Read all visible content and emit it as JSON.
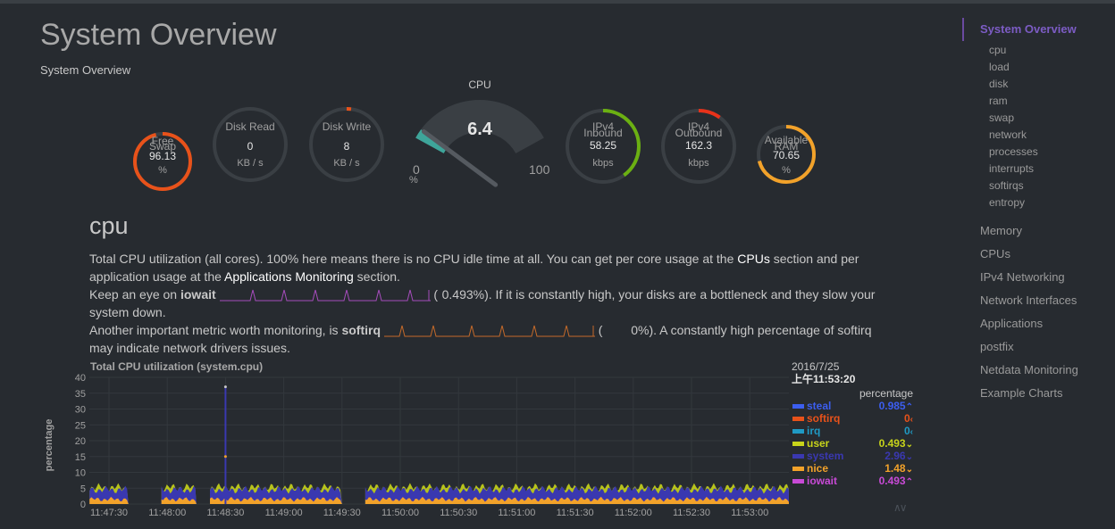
{
  "page": {
    "title": "System Overview",
    "subtitle": "System Overview"
  },
  "gauges": {
    "swap": {
      "label1": "Free",
      "label2": "Swap",
      "value": "96.13",
      "unit": "%",
      "color": "#e8521a",
      "fraction": 0.96
    },
    "diskread": {
      "label1": "Disk Read",
      "value": "0",
      "unit": "KB / s",
      "color": "#e8521a",
      "fraction": 0.0
    },
    "diskwrite": {
      "label1": "Disk Write",
      "value": "8",
      "unit": "KB / s",
      "color": "#e8521a",
      "fraction": 0.02
    },
    "inbound": {
      "label1": "IPv4",
      "label2": "Inbound",
      "value": "58.25",
      "unit": "kbps",
      "color": "#6bb012",
      "fraction": 0.4
    },
    "outbound": {
      "label1": "IPv4",
      "label2": "Outbound",
      "value": "162.3",
      "unit": "kbps",
      "color": "#e8321a",
      "fraction": 0.1
    },
    "ram": {
      "label1": "Available",
      "label2": "RAM",
      "value": "70.65",
      "unit": "%",
      "color": "#f2a22a",
      "fraction": 0.71
    }
  },
  "cpu_gauge": {
    "title": "CPU",
    "value": "6.4",
    "min": "0",
    "max": "100",
    "unit": "%",
    "fraction": 0.064,
    "color": "#3ea59a"
  },
  "section": {
    "title": "cpu",
    "p1_a": "Total CPU utilization (all cores). 100% here means there is no CPU idle time at all. You can get per core usage at the ",
    "p1_link1": "CPUs",
    "p1_b": " section and per application usage at the ",
    "p1_link2": "Applications Monitoring",
    "p1_c": " section.",
    "p2_a": "Keep an eye on ",
    "p2_key": "iowait",
    "p2_open": " (",
    "p2_val": "0.493%",
    "p2_b": "). If it is constantly high, your disks are a bottleneck and they slow your system down.",
    "p3_a": "Another important metric worth monitoring, is ",
    "p3_key": "softirq",
    "p3_open": " (",
    "p3_val": "0%",
    "p3_b": "). A constantly high percentage of softirq may indicate network drivers issues."
  },
  "chart_data": {
    "type": "area",
    "title": "Total CPU utilization (system.cpu)",
    "ylabel": "percentage",
    "xlabel": "",
    "ylim": [
      0,
      40
    ],
    "yticks": [
      "40",
      "35",
      "30",
      "25",
      "20",
      "15",
      "10",
      "5",
      "0"
    ],
    "x": [
      "11:47:30",
      "11:48:00",
      "11:48:30",
      "11:49:00",
      "11:49:30",
      "11:50:00",
      "11:50:30",
      "11:51:00",
      "11:51:30",
      "11:52:00",
      "11:52:30",
      "11:53:00"
    ],
    "series": [
      {
        "name": "steal",
        "value": "0.985",
        "color": "#3c5ef0"
      },
      {
        "name": "softirq",
        "value": "0",
        "color": "#e8521a"
      },
      {
        "name": "irq",
        "value": "0",
        "color": "#1f9ac4"
      },
      {
        "name": "user",
        "value": "0.493",
        "color": "#c8d41a"
      },
      {
        "name": "system",
        "value": "2.96",
        "color": "#3a38b0"
      },
      {
        "name": "nice",
        "value": "1.48",
        "color": "#f2a22a"
      },
      {
        "name": "iowait",
        "value": "0.493",
        "color": "#c84ad6"
      }
    ],
    "stacked_levels": {
      "nice": 1.5,
      "system": 4.5,
      "user": 5.2
    },
    "spike": {
      "time": "11:48:30",
      "value": 37
    },
    "gaps": [
      "11:47:40-11:47:57",
      "11:48:15-11:48:22",
      "11:49:30-11:49:42"
    ]
  },
  "legend": {
    "date": "2016/7/25",
    "time": "上午11:53:20",
    "unit": "percentage",
    "arrows": [
      "^",
      "<",
      "<",
      "v",
      "v",
      "v",
      "^"
    ]
  },
  "sidebar": {
    "active": "System Overview",
    "sub": [
      "cpu",
      "load",
      "disk",
      "ram",
      "swap",
      "network",
      "processes",
      "interrupts",
      "softirqs",
      "entropy"
    ],
    "top": [
      "Memory",
      "CPUs",
      "IPv4 Networking",
      "Network Interfaces",
      "Applications",
      "postfix",
      "Netdata Monitoring",
      "Example Charts"
    ]
  }
}
